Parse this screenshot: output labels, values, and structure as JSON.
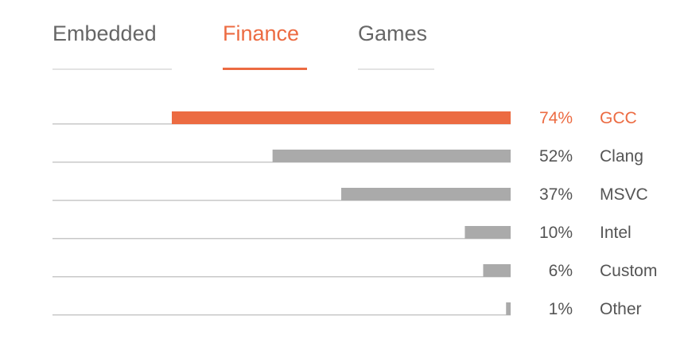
{
  "tabs": [
    {
      "label": "Embedded",
      "active": false
    },
    {
      "label": "Finance",
      "active": true
    },
    {
      "label": "Games",
      "active": false
    }
  ],
  "colors": {
    "accent": "#ec6b42",
    "bar": "#aaaaaa",
    "text": "#555555",
    "baseline": "#c8c8c8"
  },
  "chart_data": {
    "type": "bar",
    "orientation": "horizontal",
    "direction": "right-to-left",
    "categories": [
      "GCC",
      "Clang",
      "MSVC",
      "Intel",
      "Custom",
      "Other"
    ],
    "values": [
      74,
      52,
      37,
      10,
      6,
      1
    ],
    "value_labels": [
      "74%",
      "52%",
      "37%",
      "10%",
      "6%",
      "1%"
    ],
    "highlight_index": 0,
    "xlim": [
      0,
      74
    ],
    "grid": false,
    "legend": "none"
  }
}
